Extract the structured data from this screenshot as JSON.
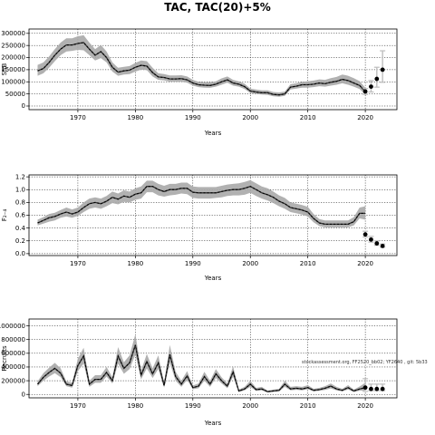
{
  "figure": {
    "title": "TAC, TAC(20)+5%",
    "note": "stockassessment.org, FF2520_bb02; YF2640 , git: 5b33"
  },
  "chart_data": [
    {
      "type": "line",
      "name": "ssb",
      "xlabel": "Years",
      "ylabel": "SSB",
      "xlim": [
        1961.5,
        2025.5
      ],
      "ylim": [
        -15000,
        318000
      ],
      "xticks": [
        1970,
        1980,
        1990,
        2000,
        2010,
        2020
      ],
      "yticks": [
        0,
        50000,
        100000,
        150000,
        200000,
        250000,
        300000
      ],
      "ytick_labels": [
        "0",
        "50000",
        "100000",
        "150000",
        "200000",
        "250000",
        "300000"
      ],
      "grid": true,
      "x": [
        1963,
        1964,
        1965,
        1966,
        1967,
        1968,
        1969,
        1970,
        1971,
        1972,
        1973,
        1974,
        1975,
        1976,
        1977,
        1978,
        1979,
        1980,
        1981,
        1982,
        1983,
        1984,
        1985,
        1986,
        1987,
        1988,
        1989,
        1990,
        1991,
        1992,
        1993,
        1994,
        1995,
        1996,
        1997,
        1998,
        1999,
        2000,
        2001,
        2002,
        2003,
        2004,
        2005,
        2006,
        2007,
        2008,
        2009,
        2010,
        2011,
        2012,
        2013,
        2014,
        2015,
        2016,
        2017,
        2018,
        2019,
        2020
      ],
      "estimate": [
        145000,
        155000,
        180000,
        210000,
        235000,
        252000,
        252000,
        258000,
        262000,
        235000,
        210000,
        225000,
        200000,
        160000,
        140000,
        145000,
        148000,
        160000,
        168000,
        165000,
        138000,
        120000,
        118000,
        112000,
        112000,
        113000,
        108000,
        95000,
        88000,
        86000,
        85000,
        90000,
        100000,
        108000,
        95000,
        90000,
        80000,
        62000,
        58000,
        55000,
        55000,
        48000,
        46000,
        50000,
        78000,
        82000,
        88000,
        88000,
        90000,
        95000,
        92000,
        98000,
        102000,
        110000,
        105000,
        95000,
        85000,
        60000
      ],
      "lower": [
        125000,
        135000,
        158000,
        185000,
        210000,
        225000,
        228000,
        232000,
        230000,
        210000,
        188000,
        198000,
        180000,
        142000,
        125000,
        130000,
        132000,
        142000,
        150000,
        148000,
        122000,
        108000,
        106000,
        100000,
        100000,
        100000,
        96000,
        84000,
        78000,
        76000,
        75000,
        80000,
        88000,
        96000,
        84000,
        80000,
        70000,
        54000,
        50000,
        47000,
        46000,
        40000,
        38000,
        42000,
        68000,
        72000,
        76000,
        76000,
        78000,
        82000,
        80000,
        84000,
        88000,
        94000,
        88000,
        80000,
        70000,
        47000
      ],
      "upper": [
        170000,
        180000,
        205000,
        235000,
        262000,
        280000,
        280000,
        288000,
        292000,
        262000,
        235000,
        252000,
        225000,
        180000,
        158000,
        162000,
        165000,
        178000,
        188000,
        185000,
        158000,
        135000,
        132000,
        126000,
        126000,
        127000,
        122000,
        108000,
        100000,
        98000,
        98000,
        102000,
        114000,
        122000,
        108000,
        102000,
        92000,
        72000,
        68000,
        65000,
        65000,
        58000,
        56000,
        60000,
        90000,
        94000,
        100000,
        102000,
        105000,
        110000,
        108000,
        115000,
        120000,
        130000,
        125000,
        115000,
        103000,
        75000
      ],
      "forecast": {
        "x": [
          2020,
          2021,
          2022,
          2023
        ],
        "values": [
          60000,
          80000,
          112000,
          150000
        ],
        "lower": [
          48000,
          58000,
          78000,
          98000
        ],
        "upper": [
          72000,
          105000,
          160000,
          228000
        ]
      }
    },
    {
      "type": "line",
      "name": "f",
      "xlabel": "Years",
      "ylabel": "F₂₋₄",
      "xlim": [
        1961.5,
        2025.5
      ],
      "ylim": [
        -0.03,
        1.23
      ],
      "xticks": [
        1970,
        1980,
        1990,
        2000,
        2010,
        2020
      ],
      "yticks": [
        0.0,
        0.2,
        0.4,
        0.6,
        0.8,
        1.0,
        1.2
      ],
      "ytick_labels": [
        "0.0",
        "0.2",
        "0.4",
        "0.6",
        "0.8",
        "1.0",
        "1.2"
      ],
      "grid": true,
      "x": [
        1963,
        1964,
        1965,
        1966,
        1967,
        1968,
        1969,
        1970,
        1971,
        1972,
        1973,
        1974,
        1975,
        1976,
        1977,
        1978,
        1979,
        1980,
        1981,
        1982,
        1983,
        1984,
        1985,
        1986,
        1987,
        1988,
        1989,
        1990,
        1991,
        1992,
        1993,
        1994,
        1995,
        1996,
        1997,
        1998,
        1999,
        2000,
        2001,
        2002,
        2003,
        2004,
        2005,
        2006,
        2007,
        2008,
        2009,
        2010,
        2011,
        2012,
        2013,
        2014,
        2015,
        2016,
        2017,
        2018,
        2019,
        2020
      ],
      "estimate": [
        0.48,
        0.52,
        0.56,
        0.58,
        0.62,
        0.65,
        0.62,
        0.65,
        0.72,
        0.78,
        0.8,
        0.78,
        0.82,
        0.88,
        0.85,
        0.9,
        0.88,
        0.93,
        0.95,
        1.05,
        1.05,
        1.0,
        0.97,
        1.0,
        1.0,
        1.02,
        1.02,
        0.96,
        0.95,
        0.95,
        0.95,
        0.95,
        0.97,
        0.99,
        1.0,
        1.0,
        1.02,
        1.05,
        1.0,
        0.95,
        0.92,
        0.88,
        0.82,
        0.78,
        0.72,
        0.7,
        0.68,
        0.65,
        0.55,
        0.48,
        0.46,
        0.46,
        0.46,
        0.46,
        0.46,
        0.5,
        0.63,
        0.63
      ],
      "lower": [
        0.44,
        0.47,
        0.5,
        0.52,
        0.56,
        0.58,
        0.56,
        0.59,
        0.65,
        0.7,
        0.72,
        0.7,
        0.74,
        0.79,
        0.77,
        0.81,
        0.8,
        0.84,
        0.86,
        0.96,
        0.96,
        0.91,
        0.89,
        0.91,
        0.92,
        0.94,
        0.93,
        0.87,
        0.86,
        0.86,
        0.86,
        0.87,
        0.88,
        0.9,
        0.91,
        0.91,
        0.92,
        0.95,
        0.9,
        0.86,
        0.83,
        0.79,
        0.74,
        0.7,
        0.65,
        0.63,
        0.61,
        0.58,
        0.49,
        0.43,
        0.41,
        0.41,
        0.41,
        0.41,
        0.41,
        0.44,
        0.55,
        0.53
      ],
      "upper": [
        0.53,
        0.57,
        0.62,
        0.64,
        0.68,
        0.72,
        0.69,
        0.72,
        0.8,
        0.86,
        0.88,
        0.86,
        0.9,
        0.97,
        0.94,
        0.99,
        0.97,
        1.02,
        1.05,
        1.14,
        1.14,
        1.09,
        1.06,
        1.09,
        1.09,
        1.11,
        1.11,
        1.05,
        1.04,
        1.04,
        1.04,
        1.04,
        1.06,
        1.08,
        1.09,
        1.1,
        1.12,
        1.15,
        1.1,
        1.05,
        1.02,
        0.97,
        0.91,
        0.87,
        0.8,
        0.78,
        0.76,
        0.73,
        0.62,
        0.54,
        0.52,
        0.52,
        0.52,
        0.52,
        0.52,
        0.57,
        0.72,
        0.74
      ],
      "forecast": {
        "x": [
          2020,
          2021,
          2022,
          2023
        ],
        "values": [
          0.3,
          0.22,
          0.16,
          0.12
        ],
        "lower": [
          0.26,
          0.18,
          0.13,
          0.1
        ],
        "upper": [
          0.35,
          0.27,
          0.2,
          0.15
        ]
      }
    },
    {
      "type": "line",
      "name": "recruitment",
      "xlabel": "Years",
      "ylabel": "Recruits",
      "xlim": [
        1961.5,
        2025.5
      ],
      "ylim": [
        -50000,
        1100000
      ],
      "xticks": [
        1970,
        1980,
        1990,
        2000,
        2010,
        2020
      ],
      "yticks": [
        0,
        200000,
        400000,
        600000,
        800000,
        1000000
      ],
      "ytick_labels": [
        "0",
        "200000",
        "400000",
        "600000",
        "800000",
        "1000000"
      ],
      "grid": true,
      "x": [
        1963,
        1964,
        1965,
        1966,
        1967,
        1968,
        1969,
        1970,
        1971,
        1972,
        1973,
        1974,
        1975,
        1976,
        1977,
        1978,
        1979,
        1980,
        1981,
        1982,
        1983,
        1984,
        1985,
        1986,
        1987,
        1988,
        1989,
        1990,
        1991,
        1992,
        1993,
        1994,
        1995,
        1996,
        1997,
        1998,
        1999,
        2000,
        2001,
        2002,
        2003,
        2004,
        2005,
        2006,
        2007,
        2008,
        2009,
        2010,
        2011,
        2012,
        2013,
        2014,
        2015,
        2016,
        2017,
        2018,
        2019,
        2020
      ],
      "estimate": [
        150000,
        250000,
        320000,
        380000,
        310000,
        150000,
        130000,
        420000,
        560000,
        150000,
        220000,
        220000,
        320000,
        200000,
        560000,
        380000,
        460000,
        720000,
        280000,
        480000,
        300000,
        460000,
        130000,
        580000,
        260000,
        150000,
        270000,
        100000,
        120000,
        260000,
        150000,
        300000,
        200000,
        120000,
        330000,
        50000,
        80000,
        150000,
        70000,
        80000,
        40000,
        50000,
        60000,
        150000,
        80000,
        90000,
        80000,
        100000,
        60000,
        70000,
        90000,
        120000,
        80000,
        60000,
        100000,
        50000,
        80000,
        100000
      ],
      "lower": [
        120000,
        200000,
        260000,
        310000,
        250000,
        120000,
        100000,
        340000,
        450000,
        110000,
        170000,
        170000,
        260000,
        160000,
        450000,
        300000,
        370000,
        580000,
        220000,
        380000,
        240000,
        370000,
        100000,
        460000,
        200000,
        110000,
        210000,
        75000,
        90000,
        200000,
        110000,
        240000,
        160000,
        90000,
        260000,
        35000,
        60000,
        110000,
        50000,
        60000,
        28000,
        36000,
        44000,
        110000,
        60000,
        68000,
        60000,
        75000,
        44000,
        52000,
        66000,
        88000,
        58000,
        44000,
        72000,
        35000,
        55000,
        55000
      ],
      "upper": [
        190000,
        310000,
        390000,
        460000,
        380000,
        190000,
        170000,
        520000,
        680000,
        200000,
        280000,
        280000,
        400000,
        250000,
        690000,
        470000,
        570000,
        880000,
        350000,
        590000,
        380000,
        570000,
        170000,
        720000,
        330000,
        200000,
        340000,
        130000,
        160000,
        330000,
        200000,
        370000,
        250000,
        160000,
        410000,
        70000,
        110000,
        200000,
        95000,
        110000,
        56000,
        70000,
        82000,
        200000,
        110000,
        120000,
        110000,
        135000,
        82000,
        95000,
        120000,
        160000,
        110000,
        82000,
        135000,
        70000,
        115000,
        170000
      ],
      "forecast": {
        "x": [
          2020,
          2021,
          2022,
          2023
        ],
        "values": [
          100000,
          80000,
          80000,
          80000
        ],
        "lower": [
          45000,
          55000,
          55000,
          55000
        ],
        "upper": [
          230000,
          150000,
          150000,
          150000
        ]
      }
    }
  ]
}
